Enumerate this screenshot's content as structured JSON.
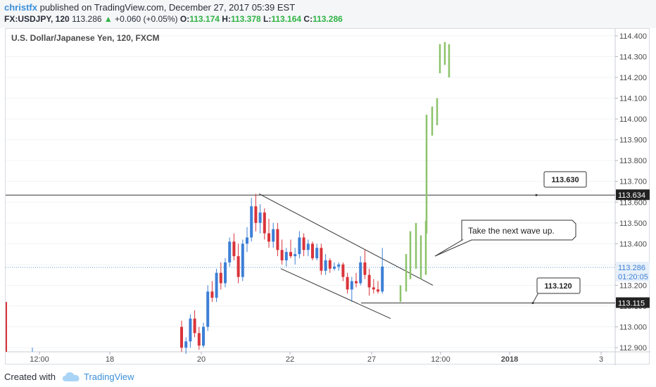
{
  "header": {
    "author": "christfx",
    "published_text": "published on TradingView.com, December 27, 2017 05:39 EST",
    "symbol": "FX:USDJPY, 120",
    "last": "113.286",
    "change": "+0.060 (+0.05%)",
    "o_label": "O:",
    "o_value": "113.174",
    "h_label": "H:",
    "h_value": "113.378",
    "l_label": "L:",
    "l_value": "113.164",
    "c_label": "C:",
    "c_value": "113.286"
  },
  "footer": {
    "created_with": "Created with",
    "brand": "TradingView"
  },
  "colors": {
    "up": "#3d7fd6",
    "down": "#d9343a",
    "forecast": "#8dc26b",
    "dotted": "#5a9bd8",
    "axis_text": "#4a4a4a"
  },
  "chart_data": {
    "type": "candlestick",
    "title": "U.S. Dollar/Japanese Yen, 120, FXCM",
    "ylim": [
      112.88,
      114.42
    ],
    "y_ticks": [
      "112.900",
      "113.000",
      "113.100",
      "113.200",
      "113.300",
      "113.400",
      "113.500",
      "113.600",
      "113.700",
      "113.800",
      "113.900",
      "114.000",
      "114.100",
      "114.200",
      "114.300",
      "114.400"
    ],
    "x_ticks": [
      "12:00",
      "18",
      "20",
      "22",
      "27",
      "12:00",
      "2018",
      "3"
    ],
    "candles": [
      [
        113.0,
        113.03,
        112.88,
        112.9
      ],
      [
        112.9,
        112.95,
        112.87,
        112.93
      ],
      [
        112.93,
        113.06,
        112.9,
        113.04
      ],
      [
        113.04,
        113.08,
        112.95,
        112.97
      ],
      [
        112.97,
        113.0,
        112.89,
        112.91
      ],
      [
        112.91,
        113.02,
        112.9,
        113.0
      ],
      [
        113.0,
        113.2,
        112.98,
        113.17
      ],
      [
        113.17,
        113.22,
        113.12,
        113.14
      ],
      [
        113.14,
        113.28,
        113.12,
        113.26
      ],
      [
        113.26,
        113.31,
        113.18,
        113.21
      ],
      [
        113.21,
        113.33,
        113.19,
        113.31
      ],
      [
        113.31,
        113.43,
        113.29,
        113.41
      ],
      [
        113.41,
        113.45,
        113.32,
        113.34
      ],
      [
        113.34,
        113.4,
        113.21,
        113.24
      ],
      [
        113.24,
        113.42,
        113.22,
        113.4
      ],
      [
        113.4,
        113.48,
        113.36,
        113.43
      ],
      [
        113.43,
        113.62,
        113.41,
        113.58
      ],
      [
        113.58,
        113.64,
        113.46,
        113.5
      ],
      [
        113.5,
        113.59,
        113.45,
        113.55
      ],
      [
        113.55,
        113.57,
        113.42,
        113.45
      ],
      [
        113.45,
        113.52,
        113.38,
        113.41
      ],
      [
        113.41,
        113.5,
        113.38,
        113.47
      ],
      [
        113.47,
        113.5,
        113.34,
        113.37
      ],
      [
        113.37,
        113.42,
        113.3,
        113.32
      ],
      [
        113.32,
        113.38,
        113.29,
        113.36
      ],
      [
        113.36,
        113.42,
        113.33,
        113.34
      ],
      [
        113.34,
        113.38,
        113.3,
        113.35
      ],
      [
        113.35,
        113.46,
        113.33,
        113.43
      ],
      [
        113.43,
        113.45,
        113.34,
        113.37
      ],
      [
        113.37,
        113.42,
        113.34,
        113.4
      ],
      [
        113.4,
        113.41,
        113.32,
        113.33
      ],
      [
        113.33,
        113.4,
        113.32,
        113.38
      ],
      [
        113.38,
        113.4,
        113.25,
        113.27
      ],
      [
        113.27,
        113.35,
        113.25,
        113.32
      ],
      [
        113.32,
        113.33,
        113.26,
        113.28
      ],
      [
        113.28,
        113.31,
        113.27,
        113.29
      ],
      [
        113.29,
        113.31,
        113.27,
        113.3
      ],
      [
        113.3,
        113.31,
        113.22,
        113.24
      ],
      [
        113.24,
        113.26,
        113.16,
        113.18
      ],
      [
        113.18,
        113.24,
        113.12,
        113.22
      ],
      [
        113.22,
        113.26,
        113.19,
        113.21
      ],
      [
        113.21,
        113.34,
        113.2,
        113.31
      ],
      [
        113.31,
        113.37,
        113.23,
        113.25
      ],
      [
        113.25,
        113.28,
        113.15,
        113.19
      ],
      [
        113.19,
        113.23,
        113.16,
        113.18
      ],
      [
        113.18,
        113.22,
        113.16,
        113.17
      ],
      [
        113.17,
        113.38,
        113.16,
        113.29
      ]
    ],
    "forecast_bars": [
      [
        113.12,
        113.2
      ],
      [
        113.17,
        113.35
      ],
      [
        113.23,
        113.46
      ],
      [
        113.28,
        113.5
      ],
      [
        113.23,
        113.44
      ],
      [
        113.25,
        113.51
      ],
      [
        113.45,
        114.02
      ],
      [
        113.92,
        114.06
      ],
      [
        113.97,
        114.1
      ],
      [
        114.22,
        114.36
      ],
      [
        114.26,
        114.37
      ],
      [
        114.2,
        114.36
      ]
    ],
    "resistance": 113.634,
    "support": 113.115,
    "current": 113.286,
    "price_labels": [
      "113.634",
      "113.286",
      "01:20:05",
      "113.115"
    ],
    "callouts": [
      "113.630",
      "Take the next wave up.",
      "113.120"
    ]
  }
}
